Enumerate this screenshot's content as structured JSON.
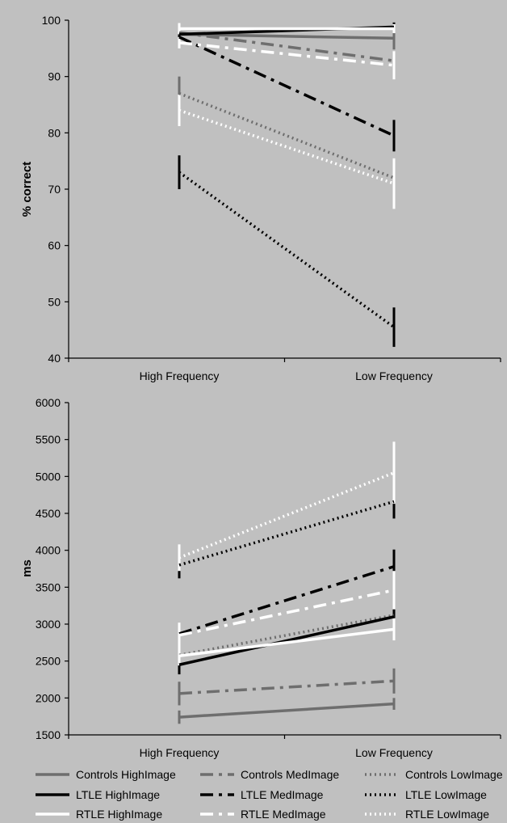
{
  "colors": {
    "background": "#c0c0c0",
    "axis": "#000000",
    "controls": "#6e6e6e",
    "ltle": "#000000",
    "rtle": "#ffffff"
  },
  "groups": [
    {
      "name": "Controls",
      "color": "#6e6e6e"
    },
    {
      "name": "LTLE",
      "color": "#000000"
    },
    {
      "name": "RTLE",
      "color": "#ffffff"
    }
  ],
  "conditions": [
    {
      "name": "HighImage",
      "dash": "solid"
    },
    {
      "name": "MedImage",
      "dash": "dashdot"
    },
    {
      "name": "LowImage",
      "dash": "dotted"
    }
  ],
  "legend": {
    "placement": "bottom",
    "entries": [
      "Controls HighImage",
      "Controls MedImage",
      "Controls LowImage",
      "LTLE HighImage",
      "LTLE MedImage",
      "LTLE LowImage",
      "RTLE HighImage",
      "RTLE MedImage",
      "RTLE LowImage"
    ]
  },
  "chart_data": [
    {
      "type": "line",
      "title": "",
      "xlabel": "",
      "ylabel": "% correct",
      "categories": [
        "High Frequency",
        "Low Frequency"
      ],
      "ylim": [
        40,
        100
      ],
      "yticks": [
        40,
        50,
        60,
        70,
        80,
        90,
        100
      ],
      "grid": false,
      "series": [
        {
          "name": "Controls HighImage",
          "values": [
            97.5,
            96.8
          ],
          "errors": [
            1.2,
            2.0
          ]
        },
        {
          "name": "Controls MedImage",
          "values": [
            97.8,
            92.8
          ],
          "errors": [
            1.0,
            1.5
          ]
        },
        {
          "name": "Controls LowImage",
          "values": [
            87.0,
            72.0
          ],
          "errors": [
            3.0,
            3.5
          ]
        },
        {
          "name": "LTLE HighImage",
          "values": [
            97.5,
            98.8
          ],
          "errors": [
            1.0,
            0.8
          ]
        },
        {
          "name": "LTLE MedImage",
          "values": [
            97.0,
            79.5
          ],
          "errors": [
            1.0,
            2.8
          ]
        },
        {
          "name": "LTLE LowImage",
          "values": [
            73.0,
            45.5
          ],
          "errors": [
            3.0,
            3.5
          ]
        },
        {
          "name": "RTLE HighImage",
          "values": [
            98.5,
            98.5
          ],
          "errors": [
            1.0,
            0.8
          ]
        },
        {
          "name": "RTLE MedImage",
          "values": [
            96.0,
            92.0
          ],
          "errors": [
            1.0,
            2.5
          ]
        },
        {
          "name": "RTLE LowImage",
          "values": [
            84.0,
            71.0
          ],
          "errors": [
            2.8,
            4.5
          ]
        }
      ]
    },
    {
      "type": "line",
      "title": "",
      "xlabel": "",
      "ylabel": "ms",
      "categories": [
        "High Frequency",
        "Low Frequency"
      ],
      "ylim": [
        1500,
        6000
      ],
      "yticks": [
        1500,
        2000,
        2500,
        3000,
        3500,
        4000,
        4500,
        5000,
        5500,
        6000
      ],
      "grid": false,
      "series": [
        {
          "name": "Controls HighImage",
          "values": [
            1740,
            1920
          ],
          "errors": [
            90,
            80
          ]
        },
        {
          "name": "Controls MedImage",
          "values": [
            2060,
            2230
          ],
          "errors": [
            160,
            170
          ]
        },
        {
          "name": "Controls LowImage",
          "values": [
            2580,
            3120
          ],
          "errors": [
            170,
            200
          ]
        },
        {
          "name": "LTLE HighImage",
          "values": [
            2450,
            3100
          ],
          "errors": [
            130,
            130
          ]
        },
        {
          "name": "LTLE MedImage",
          "values": [
            2870,
            3780
          ],
          "errors": [
            140,
            230
          ]
        },
        {
          "name": "LTLE LowImage",
          "values": [
            3800,
            4660
          ],
          "errors": [
            180,
            230
          ]
        },
        {
          "name": "RTLE HighImage",
          "values": [
            2570,
            2930
          ],
          "errors": [
            130,
            150
          ]
        },
        {
          "name": "RTLE MedImage",
          "values": [
            2850,
            3460
          ],
          "errors": [
            170,
            260
          ]
        },
        {
          "name": "RTLE LowImage",
          "values": [
            3900,
            5050
          ],
          "errors": [
            180,
            420
          ]
        }
      ]
    }
  ]
}
